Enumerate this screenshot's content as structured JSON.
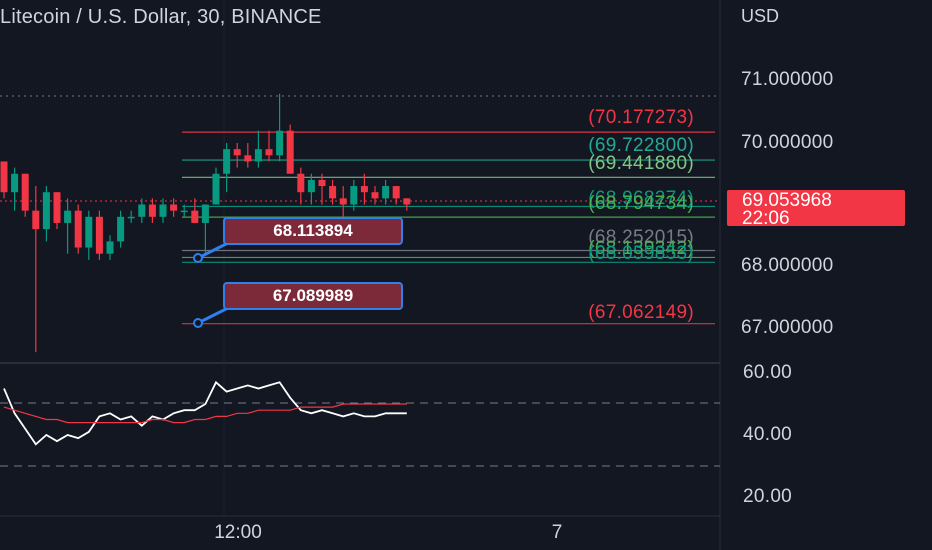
{
  "header": {
    "title": "Litecoin / U.S. Dollar, 30, BINANCE",
    "currency": "USD"
  },
  "price_axis": {
    "ticks": [
      "71.000000",
      "70.000000",
      "68.000000",
      "67.000000"
    ]
  },
  "rsi_axis": {
    "ticks": [
      "60.00",
      "40.00",
      "20.00"
    ]
  },
  "time_axis": {
    "labels": [
      "12:00",
      "7"
    ]
  },
  "last_price": {
    "value": "69.053968",
    "countdown": "22:06"
  },
  "fib_labels": [
    {
      "text": "(70.177273)",
      "color": "#f23645"
    },
    {
      "text": "(69.722800)",
      "color": "#22ab94"
    },
    {
      "text": "(69.441880)",
      "color": "#81c784"
    },
    {
      "text": "(68.968274)",
      "color": "#089981"
    },
    {
      "text": "(68.794734)",
      "color": "#4caf50"
    },
    {
      "text": "(68.252015)",
      "color": "#787b86"
    },
    {
      "text": "(68.139342)",
      "color": "#4caf50"
    },
    {
      "text": "(68.059853)",
      "color": "#089981"
    },
    {
      "text": "(67.062149)",
      "color": "#f23645"
    }
  ],
  "callouts": [
    {
      "text": "68.113894"
    },
    {
      "text": "67.089989"
    }
  ],
  "colors": {
    "up": "#089981",
    "down": "#f23645",
    "bg": "#131722",
    "rsi": "#ffffff",
    "rsi_ma": "#f23645",
    "callout_border": "#2f80ed"
  },
  "chart_data": [
    {
      "type": "candlestick",
      "title": "Litecoin / U.S. Dollar, 30, BINANCE",
      "ylabel": "USD",
      "ylim": [
        66.5,
        71.5
      ],
      "fib_levels": [
        70.177273,
        69.7228,
        69.44188,
        68.968274,
        68.794734,
        68.252015,
        68.139342,
        68.059853,
        67.062149
      ],
      "series": [
        {
          "name": "",
          "ohlc": [
            [
              69.7,
              69.7,
              69.1,
              69.2
            ],
            [
              69.2,
              69.6,
              68.9,
              69.5
            ],
            [
              69.5,
              69.5,
              68.8,
              68.9
            ],
            [
              68.9,
              69.3,
              66.6,
              68.6
            ],
            [
              68.6,
              69.3,
              68.4,
              69.2
            ],
            [
              69.2,
              69.2,
              68.6,
              68.7
            ],
            [
              68.7,
              69.1,
              68.2,
              68.9
            ],
            [
              68.9,
              69.0,
              68.2,
              68.3
            ],
            [
              68.3,
              68.9,
              68.1,
              68.8
            ],
            [
              68.8,
              68.9,
              68.1,
              68.2
            ],
            [
              68.2,
              68.5,
              68.1,
              68.4
            ],
            [
              68.4,
              68.9,
              68.3,
              68.8
            ],
            [
              68.8,
              68.9,
              68.7,
              68.8
            ],
            [
              68.8,
              69.1,
              68.7,
              69.0
            ],
            [
              69.0,
              69.1,
              68.7,
              68.8
            ],
            [
              68.8,
              69.1,
              68.7,
              69.0
            ],
            [
              69.0,
              69.1,
              68.8,
              68.9
            ],
            [
              68.9,
              69.0,
              68.8,
              68.9
            ],
            [
              68.9,
              69.1,
              68.7,
              68.7
            ],
            [
              68.7,
              69.0,
              68.2,
              69.0
            ],
            [
              69.0,
              69.6,
              69.0,
              69.5
            ],
            [
              69.5,
              70.0,
              69.2,
              69.9
            ],
            [
              69.9,
              70.0,
              69.6,
              69.8
            ],
            [
              69.8,
              70.0,
              69.6,
              69.7
            ],
            [
              69.7,
              70.2,
              69.6,
              69.9
            ],
            [
              69.9,
              70.2,
              69.7,
              69.8
            ],
            [
              69.8,
              70.8,
              69.7,
              70.2
            ],
            [
              70.2,
              70.3,
              69.5,
              69.5
            ],
            [
              69.5,
              69.6,
              69.0,
              69.2
            ],
            [
              69.2,
              69.5,
              69.0,
              69.4
            ],
            [
              69.4,
              69.5,
              69.0,
              69.3
            ],
            [
              69.3,
              69.4,
              69.0,
              69.1
            ],
            [
              69.1,
              69.3,
              68.8,
              69.0
            ],
            [
              69.0,
              69.4,
              68.9,
              69.3
            ],
            [
              69.3,
              69.5,
              69.0,
              69.2
            ],
            [
              69.2,
              69.3,
              69.0,
              69.1
            ],
            [
              69.1,
              69.4,
              69.0,
              69.3
            ],
            [
              69.3,
              69.3,
              69.0,
              69.1
            ],
            [
              69.1,
              69.1,
              68.9,
              69.0
            ]
          ]
        }
      ]
    },
    {
      "type": "line",
      "title": "",
      "ylim": [
        15,
        65
      ],
      "series": [
        {
          "name": "",
          "values": [
            55,
            47,
            42,
            37,
            40,
            38,
            40,
            39,
            41,
            46,
            47,
            45,
            46,
            43,
            46,
            45,
            47,
            48,
            48,
            50,
            57,
            54,
            55,
            56,
            55,
            56,
            57,
            52,
            48,
            47,
            48,
            47,
            46,
            47,
            46,
            46,
            47,
            47,
            47
          ]
        },
        {
          "name": "",
          "values": [
            49,
            48,
            47,
            46,
            45,
            45,
            44,
            44,
            44,
            44,
            44,
            44,
            44,
            44,
            45,
            45,
            44,
            44,
            45,
            45,
            46,
            46,
            47,
            47,
            48,
            48,
            48,
            48,
            49,
            49,
            49,
            49,
            50,
            50,
            50,
            50,
            50,
            50,
            50
          ]
        }
      ]
    }
  ]
}
